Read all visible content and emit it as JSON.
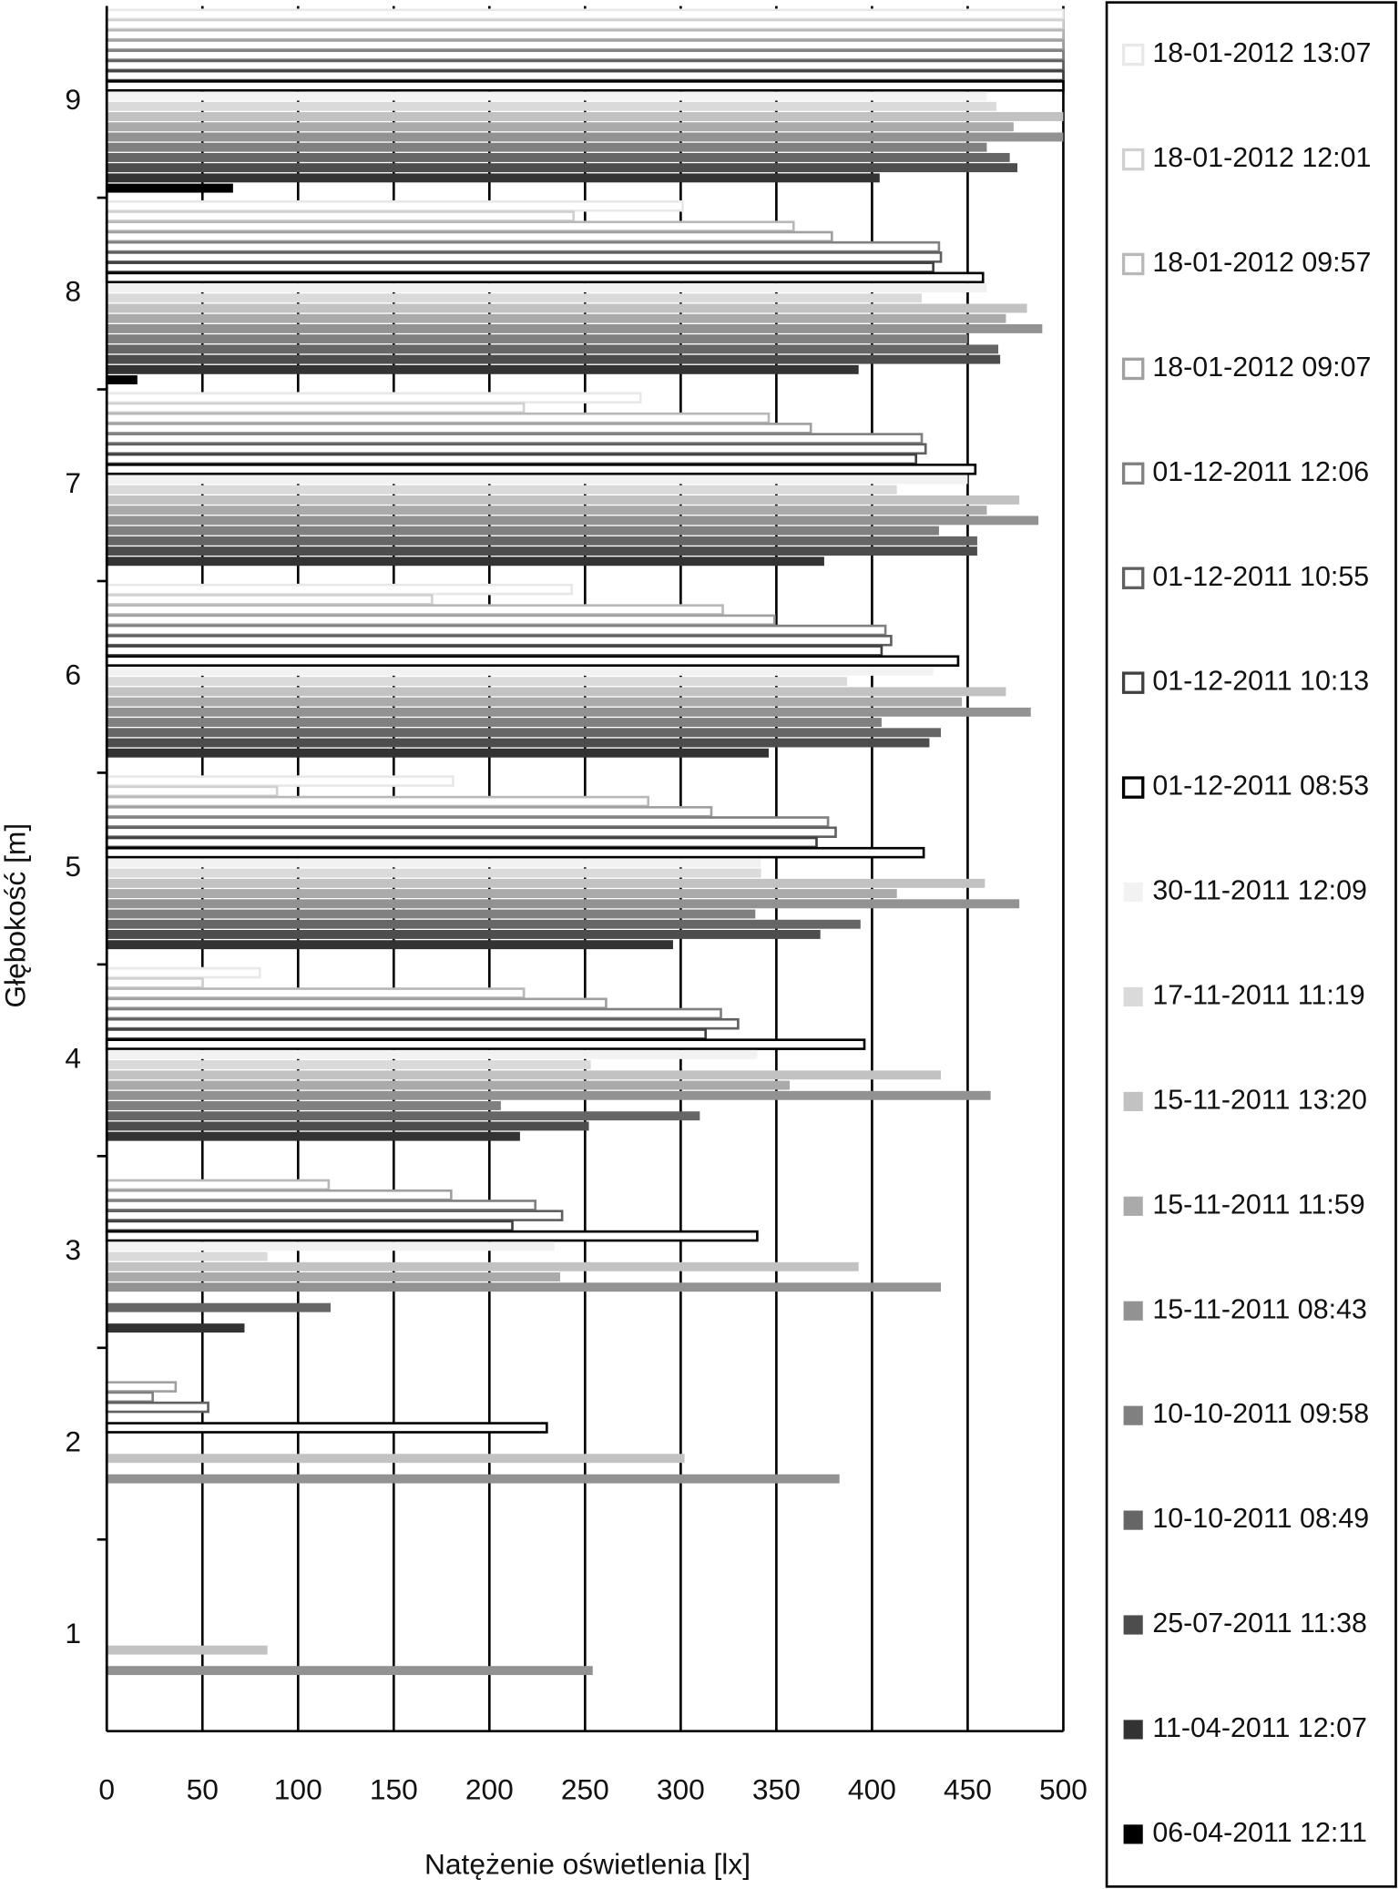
{
  "chart_data": {
    "type": "hbar",
    "x_label": "Natężenie oświetlenia [lx]",
    "y_label": "Głębokość [m]",
    "categories": [
      "1",
      "2",
      "3",
      "4",
      "5",
      "6",
      "7",
      "8",
      "9"
    ],
    "xlim": [
      0,
      500
    ],
    "xticks": [
      0,
      50,
      100,
      150,
      200,
      250,
      300,
      350,
      400,
      450,
      500
    ],
    "grid": true,
    "legend": "right",
    "series": [
      {
        "name": "18-01-2012 13:07",
        "color": "#e8e8e8",
        "outline": true,
        "values": [
          null,
          null,
          null,
          80,
          181,
          243,
          279,
          301,
          500
        ]
      },
      {
        "name": "18-01-2012 12:01",
        "color": "#d0d0d0",
        "outline": true,
        "values": [
          null,
          null,
          null,
          50,
          89,
          170,
          218,
          244,
          500
        ]
      },
      {
        "name": "18-01-2012 09:57",
        "color": "#b8b8b8",
        "outline": true,
        "values": [
          null,
          null,
          116,
          218,
          283,
          322,
          346,
          359,
          500
        ]
      },
      {
        "name": "18-01-2012 09:07",
        "color": "#a0a0a0",
        "outline": true,
        "values": [
          null,
          36,
          180,
          261,
          316,
          349,
          368,
          379,
          500
        ]
      },
      {
        "name": "01-12-2011 12:06",
        "color": "#808080",
        "outline": true,
        "values": [
          null,
          24,
          224,
          321,
          377,
          407,
          426,
          435,
          500
        ]
      },
      {
        "name": "01-12-2011 10:55",
        "color": "#606060",
        "outline": true,
        "values": [
          null,
          53,
          238,
          330,
          381,
          410,
          428,
          436,
          500
        ]
      },
      {
        "name": "01-12-2011 10:13",
        "color": "#404040",
        "outline": true,
        "values": [
          null,
          null,
          212,
          313,
          371,
          405,
          423,
          432,
          500
        ]
      },
      {
        "name": "01-12-2011 08:53",
        "color": "#000000",
        "outline": true,
        "values": [
          null,
          230,
          340,
          396,
          427,
          445,
          454,
          458,
          500
        ]
      },
      {
        "name": "30-11-2011 12:09",
        "color": "#f2f2f2",
        "outline": false,
        "values": [
          null,
          null,
          234,
          340,
          342,
          432,
          450,
          460,
          460
        ]
      },
      {
        "name": "17-11-2011 11:19",
        "color": "#dadada",
        "outline": false,
        "values": [
          null,
          null,
          84,
          253,
          342,
          387,
          413,
          426,
          465
        ]
      },
      {
        "name": "15-11-2011 13:20",
        "color": "#c2c2c2",
        "outline": false,
        "values": [
          84,
          302,
          393,
          436,
          459,
          470,
          477,
          481,
          500
        ]
      },
      {
        "name": "15-11-2011 11:59",
        "color": "#aaaaaa",
        "outline": false,
        "values": [
          null,
          null,
          237,
          357,
          413,
          447,
          460,
          470,
          474
        ]
      },
      {
        "name": "15-11-2011 08:43",
        "color": "#929292",
        "outline": false,
        "values": [
          254,
          383,
          436,
          462,
          477,
          483,
          487,
          489,
          500
        ]
      },
      {
        "name": "10-10-2011 09:58",
        "color": "#808080",
        "outline": false,
        "values": [
          null,
          null,
          null,
          206,
          339,
          405,
          435,
          450,
          460
        ]
      },
      {
        "name": "10-10-2011 08:49",
        "color": "#666666",
        "outline": false,
        "values": [
          null,
          null,
          117,
          310,
          394,
          436,
          455,
          466,
          472
        ]
      },
      {
        "name": "25-07-2011 11:38",
        "color": "#4d4d4d",
        "outline": false,
        "values": [
          null,
          null,
          null,
          252,
          373,
          430,
          455,
          467,
          476
        ]
      },
      {
        "name": "11-04-2011 12:07",
        "color": "#333333",
        "outline": false,
        "values": [
          null,
          null,
          72,
          216,
          296,
          346,
          375,
          393,
          404
        ]
      },
      {
        "name": "06-04-2011 12:11",
        "color": "#000000",
        "outline": false,
        "values": [
          null,
          null,
          null,
          null,
          null,
          null,
          null,
          16,
          66
        ]
      }
    ]
  }
}
